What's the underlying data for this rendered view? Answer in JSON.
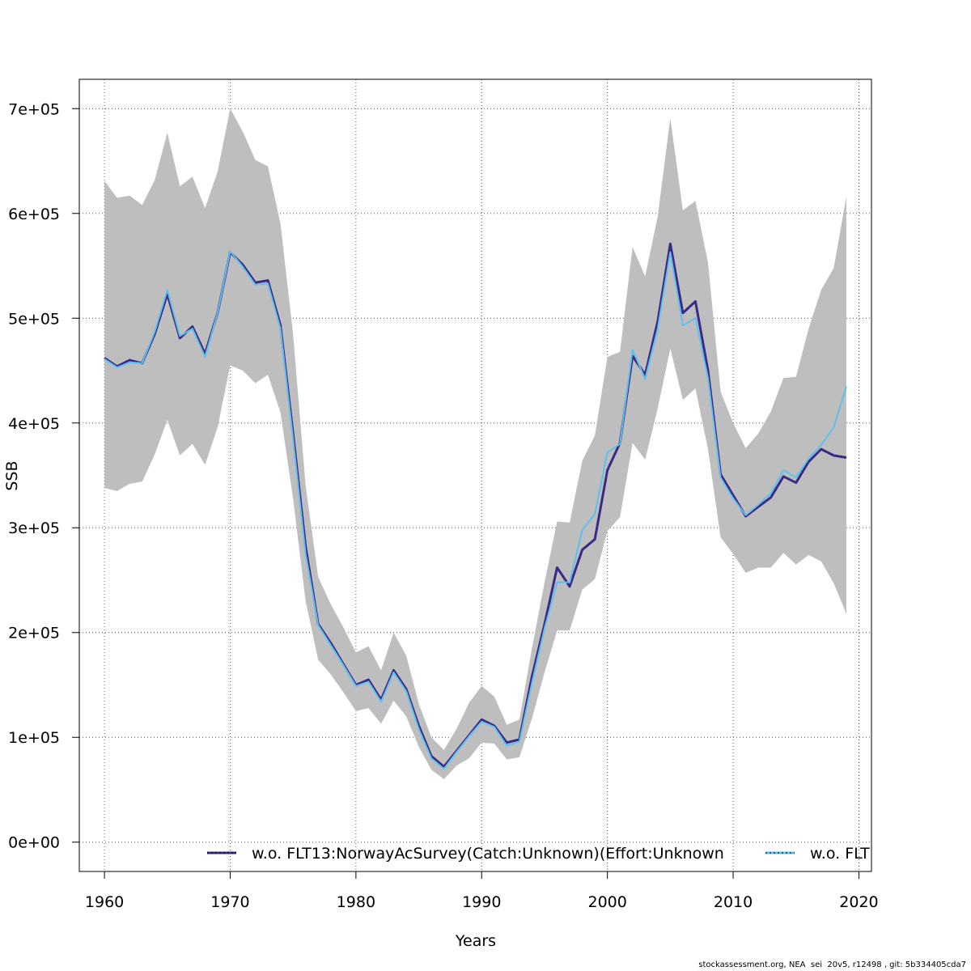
{
  "chart_data": {
    "type": "line",
    "title": "",
    "xlabel": "Years",
    "ylabel": "SSB",
    "xlim": [
      1958,
      2021
    ],
    "ylim": [
      -28000,
      728000
    ],
    "grid": true,
    "legend_placement": "bottom-right",
    "x_ticks": [
      1960,
      1970,
      1980,
      1990,
      2000,
      2010,
      2020
    ],
    "x_tick_labels": [
      "1960",
      "1970",
      "1980",
      "1990",
      "2000",
      "2010",
      "2020"
    ],
    "y_ticks": [
      0,
      100000,
      200000,
      300000,
      400000,
      500000,
      600000,
      700000
    ],
    "y_tick_labels": [
      "0e+00",
      "1e+05",
      "2e+05",
      "3e+05",
      "4e+05",
      "5e+05",
      "6e+05",
      "7e+05"
    ],
    "x": [
      1960,
      1961,
      1962,
      1963,
      1964,
      1965,
      1966,
      1967,
      1968,
      1969,
      1970,
      1971,
      1972,
      1973,
      1974,
      1975,
      1976,
      1977,
      1978,
      1979,
      1980,
      1981,
      1982,
      1983,
      1984,
      1985,
      1986,
      1987,
      1988,
      1989,
      1990,
      1991,
      1992,
      1993,
      1994,
      1995,
      1996,
      1997,
      1998,
      1999,
      2000,
      2001,
      2002,
      2003,
      2004,
      2005,
      2006,
      2007,
      2008,
      2009,
      2010,
      2011,
      2012,
      2013,
      2014,
      2015,
      2016,
      2017,
      2018,
      2019
    ],
    "band": {
      "upper": [
        631000,
        615000,
        617000,
        608000,
        632000,
        677000,
        626000,
        635000,
        605000,
        640000,
        700000,
        678000,
        651000,
        645000,
        590000,
        485000,
        340000,
        253000,
        227000,
        205000,
        181000,
        187000,
        164000,
        200000,
        178000,
        132000,
        100000,
        88000,
        108000,
        133000,
        149000,
        139000,
        112000,
        117000,
        185000,
        248000,
        306000,
        305000,
        364000,
        388000,
        463000,
        468000,
        568000,
        540000,
        597000,
        691000,
        603000,
        612000,
        553000,
        430000,
        400000,
        376000,
        390000,
        411000,
        443000,
        444000,
        490000,
        527000,
        548000,
        616000
      ],
      "lower": [
        338000,
        335000,
        342000,
        344000,
        370000,
        403000,
        369000,
        380000,
        360000,
        396000,
        455000,
        450000,
        438000,
        446000,
        410000,
        328000,
        230000,
        174000,
        160000,
        143000,
        125000,
        128000,
        113000,
        135000,
        120000,
        91000,
        69000,
        60000,
        73000,
        80000,
        95000,
        94000,
        79000,
        81000,
        118000,
        162000,
        202000,
        202000,
        241000,
        251000,
        297000,
        310000,
        381000,
        365000,
        414000,
        471000,
        422000,
        433000,
        375000,
        291000,
        275000,
        257000,
        262000,
        262000,
        276000,
        265000,
        274000,
        268000,
        247000,
        218000
      ]
    },
    "series": [
      {
        "name": "w.o. FLT13:NorwayAcSurvey(Catch:Unknown)(Effort:Unknown",
        "color": "#3a2a86",
        "values": [
          462000,
          454000,
          460000,
          457000,
          485000,
          523000,
          481000,
          492000,
          466000,
          505000,
          563000,
          551000,
          534000,
          536000,
          493000,
          390000,
          282000,
          208000,
          190000,
          170000,
          150000,
          155000,
          136000,
          164000,
          146000,
          111000,
          82000,
          72000,
          87000,
          102000,
          117000,
          111000,
          95000,
          98000,
          158000,
          208000,
          262000,
          244000,
          279000,
          289000,
          355000,
          381000,
          464000,
          446000,
          497000,
          571000,
          505000,
          516000,
          450000,
          351000,
          331000,
          311000,
          320000,
          329000,
          349000,
          343000,
          363000,
          375000,
          369000,
          367000
        ]
      },
      {
        "name": "w.o. FLT",
        "color": "#5ec0ee",
        "values": [
          461000,
          453000,
          458000,
          457000,
          487000,
          527000,
          483000,
          490000,
          463000,
          505000,
          564000,
          549000,
          532000,
          533000,
          490000,
          385000,
          275000,
          207000,
          188000,
          169000,
          149000,
          153000,
          134000,
          162000,
          144000,
          108000,
          80000,
          70000,
          86000,
          101000,
          115000,
          110000,
          92000,
          96000,
          152000,
          204000,
          248000,
          248000,
          298000,
          313000,
          372000,
          380000,
          470000,
          442000,
          490000,
          563000,
          493000,
          500000,
          443000,
          348000,
          328000,
          312000,
          322000,
          333000,
          355000,
          348000,
          366000,
          379000,
          396000,
          435000
        ]
      }
    ]
  },
  "footer": "stockassessment.org, NEA  sei  20v5, r12498 , git: 5b334405cda7"
}
